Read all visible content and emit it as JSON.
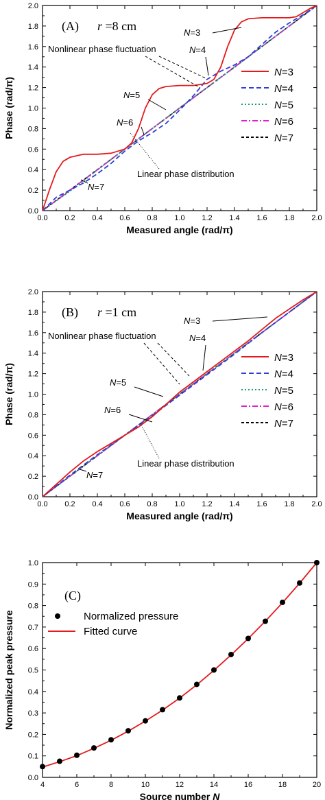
{
  "chart_data": [
    {
      "type": "line",
      "panel_label": "(A)",
      "panel_param": "r =8 cm",
      "xlabel": "Measured angle (rad/π)",
      "ylabel": "Phase (rad/π)",
      "xlim": [
        0,
        2
      ],
      "ylim": [
        0,
        2
      ],
      "xticks": [
        "0.0",
        "0.2",
        "0.4",
        "0.6",
        "0.8",
        "1.0",
        "1.2",
        "1.4",
        "1.6",
        "1.8",
        "2.0"
      ],
      "yticks": [
        "0.0",
        "0.2",
        "0.4",
        "0.6",
        "0.8",
        "1.0",
        "1.2",
        "1.4",
        "1.6",
        "1.8",
        "2.0"
      ],
      "legend_position": "right",
      "annotations": [
        "N=3",
        "N=4",
        "N=5",
        "N=6",
        "N=7",
        "Nonlinear phase fluctuation",
        "Linear phase distribution"
      ],
      "series": [
        {
          "name": "N=3",
          "color": "#e41a1c",
          "dash": "solid",
          "x": [
            0,
            0.05,
            0.1,
            0.15,
            0.2,
            0.3,
            0.4,
            0.5,
            0.6,
            0.65,
            0.7,
            0.75,
            0.8,
            0.85,
            0.9,
            1.0,
            1.1,
            1.2,
            1.25,
            1.3,
            1.35,
            1.4,
            1.45,
            1.5,
            1.6,
            1.7,
            1.8,
            1.85,
            1.9,
            1.95,
            2.0
          ],
          "y": [
            0,
            0.2,
            0.38,
            0.48,
            0.52,
            0.55,
            0.55,
            0.56,
            0.6,
            0.66,
            0.8,
            1.0,
            1.13,
            1.19,
            1.21,
            1.22,
            1.22,
            1.24,
            1.28,
            1.4,
            1.6,
            1.76,
            1.84,
            1.87,
            1.88,
            1.88,
            1.88,
            1.89,
            1.93,
            1.97,
            2.0
          ]
        },
        {
          "name": "N=4",
          "color": "#2a3fd6",
          "dash": "dashed",
          "x": [
            0,
            0.1,
            0.2,
            0.3,
            0.4,
            0.5,
            0.6,
            0.7,
            0.8,
            0.9,
            1.0,
            1.1,
            1.2,
            1.3,
            1.4,
            1.5,
            1.6,
            1.7,
            1.8,
            1.9,
            2.0
          ],
          "y": [
            0,
            0.13,
            0.2,
            0.27,
            0.36,
            0.46,
            0.58,
            0.68,
            0.76,
            0.85,
            0.98,
            1.12,
            1.28,
            1.36,
            1.42,
            1.5,
            1.62,
            1.74,
            1.83,
            1.91,
            2.0
          ]
        },
        {
          "name": "N=5",
          "color": "#1a9a7a",
          "dash": "dotted",
          "x": [
            0,
            0.1,
            0.2,
            0.3,
            0.4,
            0.5,
            0.6,
            0.7,
            0.8,
            0.9,
            1.0,
            1.1,
            1.2,
            1.3,
            1.4,
            1.5,
            1.6,
            1.7,
            1.8,
            1.9,
            2.0
          ],
          "y": [
            0,
            0.095,
            0.19,
            0.29,
            0.395,
            0.5,
            0.6,
            0.7,
            0.8,
            0.9,
            1.0,
            1.1,
            1.2,
            1.3,
            1.395,
            1.5,
            1.6,
            1.7,
            1.8,
            1.9,
            2.0
          ]
        },
        {
          "name": "N=6",
          "color": "#e020d0",
          "dash": "dashdot",
          "x": [
            0,
            0.1,
            0.2,
            0.3,
            0.4,
            0.5,
            0.6,
            0.7,
            0.8,
            0.9,
            1.0,
            1.1,
            1.2,
            1.3,
            1.4,
            1.5,
            1.6,
            1.7,
            1.8,
            1.9,
            2.0
          ],
          "y": [
            0,
            0.098,
            0.198,
            0.298,
            0.398,
            0.5,
            0.6,
            0.7,
            0.8,
            0.9,
            1.0,
            1.1,
            1.2,
            1.3,
            1.4,
            1.5,
            1.6,
            1.7,
            1.8,
            1.9,
            2.0
          ]
        },
        {
          "name": "N=7",
          "color": "#000000",
          "dash": "shortdash",
          "x": [
            0,
            2
          ],
          "y": [
            0,
            2
          ]
        }
      ]
    },
    {
      "type": "line",
      "panel_label": "(B)",
      "panel_param": "r =1 cm",
      "xlabel": "Measured angle (rad/π)",
      "ylabel": "Phase (rad/π)",
      "xlim": [
        0,
        2
      ],
      "ylim": [
        0,
        2
      ],
      "xticks": [
        "0.0",
        "0.2",
        "0.4",
        "0.6",
        "0.8",
        "1.0",
        "1.2",
        "1.4",
        "1.6",
        "1.8",
        "2.0"
      ],
      "yticks": [
        "0.0",
        "0.2",
        "0.4",
        "0.6",
        "0.8",
        "1.0",
        "1.2",
        "1.4",
        "1.6",
        "1.8",
        "2.0"
      ],
      "legend_position": "right",
      "annotations": [
        "N=3",
        "N=4",
        "N=5",
        "N=6",
        "N=7",
        "Nonlinear phase fluctuation",
        "Linear phase distribution"
      ],
      "series": [
        {
          "name": "N=3",
          "color": "#e41a1c",
          "dash": "solid",
          "x": [
            0,
            0.1,
            0.2,
            0.3,
            0.4,
            0.5,
            0.6,
            0.7,
            0.8,
            0.9,
            1.0,
            1.1,
            1.2,
            1.3,
            1.4,
            1.5,
            1.6,
            1.7,
            1.8,
            1.9,
            2.0
          ],
          "y": [
            0,
            0.12,
            0.24,
            0.35,
            0.44,
            0.52,
            0.6,
            0.68,
            0.78,
            0.9,
            1.02,
            1.12,
            1.22,
            1.32,
            1.42,
            1.52,
            1.63,
            1.74,
            1.83,
            1.92,
            2.0
          ]
        },
        {
          "name": "N=4",
          "color": "#2a3fd6",
          "dash": "dashed",
          "x": [
            0,
            0.2,
            0.4,
            0.6,
            0.8,
            1.0,
            1.2,
            1.4,
            1.6,
            1.8,
            2.0
          ],
          "y": [
            0,
            0.21,
            0.41,
            0.6,
            0.79,
            0.99,
            1.19,
            1.39,
            1.6,
            1.8,
            2.0
          ]
        },
        {
          "name": "N=5",
          "color": "#1a9a7a",
          "dash": "dotted",
          "x": [
            0,
            2
          ],
          "y": [
            0,
            2
          ]
        },
        {
          "name": "N=6",
          "color": "#e020d0",
          "dash": "dashdot",
          "x": [
            0,
            2
          ],
          "y": [
            0,
            2
          ]
        },
        {
          "name": "N=7",
          "color": "#000000",
          "dash": "shortdash",
          "x": [
            0,
            2
          ],
          "y": [
            0,
            2
          ]
        }
      ]
    },
    {
      "type": "scatter",
      "panel_label": "(C)",
      "xlabel": "Source number N",
      "ylabel": "Normalized peak pressure",
      "xlim": [
        4,
        20
      ],
      "ylim": [
        0,
        1
      ],
      "xticks": [
        "4",
        "6",
        "8",
        "10",
        "12",
        "14",
        "16",
        "18",
        "20"
      ],
      "yticks": [
        "0.0",
        "0.1",
        "0.2",
        "0.3",
        "0.4",
        "0.5",
        "0.6",
        "0.7",
        "0.8",
        "0.9",
        "1.0"
      ],
      "legend_position": "top-left",
      "series": [
        {
          "name": "Normalized pressure",
          "color": "#000000",
          "marker": "circle",
          "x": [
            4,
            5,
            6,
            7,
            8,
            9,
            10,
            11,
            12,
            13,
            14,
            15,
            16,
            17,
            18,
            19,
            20
          ],
          "y": [
            0.05,
            0.075,
            0.103,
            0.137,
            0.175,
            0.217,
            0.263,
            0.315,
            0.37,
            0.433,
            0.5,
            0.572,
            0.647,
            0.727,
            0.815,
            0.905,
            1.0
          ]
        },
        {
          "name": "Fitted curve",
          "color": "#e41a1c",
          "dash": "solid",
          "x": [
            4,
            5,
            6,
            7,
            8,
            9,
            10,
            11,
            12,
            13,
            14,
            15,
            16,
            17,
            18,
            19,
            20
          ],
          "y": [
            0.048,
            0.073,
            0.101,
            0.135,
            0.173,
            0.215,
            0.262,
            0.313,
            0.369,
            0.431,
            0.498,
            0.57,
            0.646,
            0.727,
            0.813,
            0.904,
            1.0
          ]
        }
      ]
    }
  ]
}
